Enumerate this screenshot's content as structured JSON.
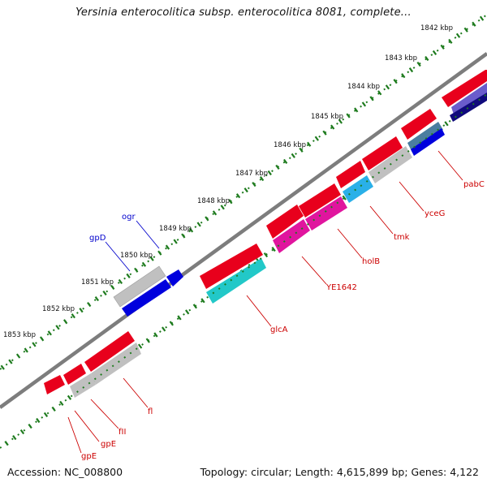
{
  "title": "Yersinia enterocolitica subsp. enterocolitica 8081, complete...",
  "accession": "Accession: NC_008800",
  "summary": "Topology: circular; Length: 4,615,899 bp; Genes: 4,122",
  "colors": {
    "forward_gene": "#e8001c",
    "unknown_gene": "#c0c0c0",
    "blue_gene": "#0000dd",
    "cyan_gene": "#22c8c8",
    "magenta_gene": "#e0159e",
    "lightblue_gene": "#2ab0e8",
    "steelblue_gene": "#4a7ea0",
    "navy_gene": "#100a7c",
    "purple_gene": "#6a5ccc",
    "backbone": "#7d7d7d",
    "tick_green": "#1e7b1e",
    "forward_label": "#cc0000",
    "reverse_label": "#0000cc"
  },
  "kbp_ticks": [
    "1842 kbp",
    "1843 kbp",
    "1844 kbp",
    "1845 kbp",
    "1846 kbp",
    "1847 kbp",
    "1848 kbp",
    "1849 kbp",
    "1850 kbp",
    "1851 kbp",
    "1852 kbp",
    "1853 kbp"
  ],
  "forward_gene_labels": [
    "pabC",
    "yceG",
    "tmk",
    "holB",
    "YE1642",
    "glcA",
    "fl",
    "fII",
    "gpE",
    "gpE"
  ],
  "reverse_gene_labels": [
    "ogr",
    "gpD"
  ]
}
